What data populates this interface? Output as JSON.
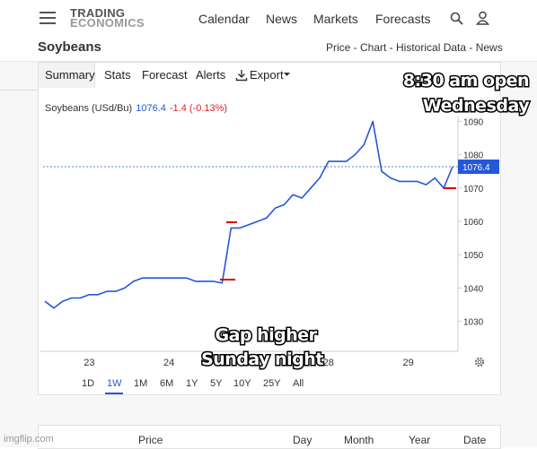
{
  "nav": {
    "logo_top": "TRADING",
    "logo_bottom": "ECONOMICS",
    "links": [
      "Calendar",
      "News",
      "Markets",
      "Forecasts"
    ]
  },
  "header": {
    "title": "Soybeans",
    "breadcrumb": "Price - Chart - Historical Data - News"
  },
  "tabs": [
    "Summary",
    "Stats",
    "Forecast",
    "Alerts",
    "Export"
  ],
  "chart_data": {
    "type": "line",
    "instrument": "Soybeans (USd/Bu)",
    "change": "-1.4 (-0.13%)",
    "last_price": 1076.4,
    "color": "#2458d8",
    "categories": [
      null,
      null,
      null,
      null,
      null,
      "23",
      null,
      null,
      null,
      null,
      null,
      null,
      null,
      null,
      "24",
      null,
      null,
      null,
      null,
      null,
      null,
      null,
      null,
      null,
      null,
      null,
      null,
      null,
      null,
      null,
      null,
      null,
      "28",
      null,
      null,
      null,
      null,
      null,
      null,
      null,
      null,
      "29",
      null,
      null,
      null,
      null,
      null
    ],
    "values": [
      1036,
      1034,
      1036,
      1037,
      1037,
      1038,
      1038,
      1039,
      1039,
      1040,
      1042,
      1043,
      1043,
      1043,
      1043,
      1043,
      1043,
      1042,
      1042,
      1042,
      1041.5,
      1058,
      1058,
      1059,
      1060,
      1061,
      1064,
      1065,
      1068,
      1067,
      1070,
      1073,
      1078,
      1078,
      1078,
      1080,
      1083,
      1090,
      1075,
      1073,
      1072,
      1072,
      1072,
      1071,
      1073,
      1070,
      1076.4
    ],
    "ylim": [
      1021,
      1092
    ],
    "yticks": [
      1030,
      1040,
      1050,
      1060,
      1070,
      1080,
      1090
    ]
  },
  "annotations": [
    "8:30 am open",
    "Wednesday",
    "Gap higher",
    "Sunday night"
  ],
  "ranges": [
    "1D",
    "1W",
    "1M",
    "6M",
    "1Y",
    "5Y",
    "10Y",
    "25Y",
    "All"
  ],
  "table_header": [
    "Price",
    "Day",
    "Month",
    "Year",
    "Date"
  ],
  "watermark": "imgflip.com"
}
